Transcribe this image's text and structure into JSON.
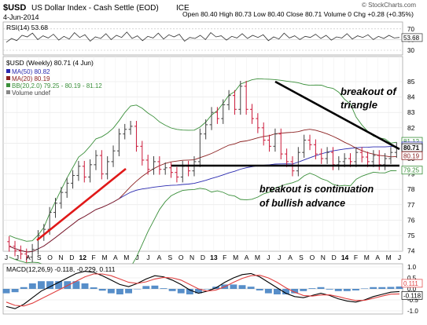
{
  "header": {
    "symbol": "$USD",
    "name": "US Dollar Index - Cash Settle (EOD)",
    "exchange": "ICE",
    "date": "4-Jun-2014",
    "ohlc": "Open 80.40   High 80.73   Low 80.40   Close 80.71   Volume 0   Chg +0.28 (+0.35%)",
    "credit": "© StockCharts.com"
  },
  "rsi": {
    "label": "RSI(14) 53.68",
    "ticks": [
      "70",
      "50",
      "30"
    ],
    "last": "53.68",
    "values": [
      45,
      52,
      48,
      58,
      55,
      62,
      50,
      57,
      53,
      60,
      49,
      56,
      51,
      63,
      54,
      59,
      47,
      55,
      52,
      61,
      50,
      58,
      54,
      64,
      52,
      57,
      48,
      56,
      53,
      62,
      51,
      59,
      55,
      60,
      47,
      54,
      52,
      58,
      50,
      63,
      55,
      57,
      49,
      56,
      53,
      61,
      52,
      58,
      54,
      59,
      48,
      55,
      51,
      62,
      53,
      57,
      50,
      56,
      54,
      60,
      52,
      58,
      49,
      55,
      53,
      61,
      51,
      57,
      54,
      59,
      50,
      56,
      52,
      58,
      53,
      54
    ]
  },
  "main": {
    "legend": {
      "title": "$USD (Weekly) 80.71 (4 Jun)",
      "ma50": "MA(50) 80.82",
      "ma20": "MA(20) 80.19",
      "bb": "BB(20,2.0) 79.25 - 80.19 - 81.12",
      "volume": "Volume undef"
    },
    "y_ticks": [
      "85",
      "84",
      "83",
      "82",
      "81",
      "80",
      "79",
      "78",
      "77",
      "76",
      "75",
      "74"
    ],
    "price_tags": {
      "bb_upper": "81.12",
      "ma50": "80.82",
      "close": "80.71",
      "ma20": "80.19",
      "bb_lower": "79.25"
    },
    "annotations": {
      "triangle_line1": "breakout of",
      "triangle_line2": "triangle",
      "continuation_line1": "breakout is continuation",
      "continuation_line2": "of bullish advance"
    }
  },
  "x_axis": {
    "labels": [
      "J",
      "J",
      "A",
      "S",
      "O",
      "N",
      "D",
      "12",
      "F",
      "M",
      "A",
      "M",
      "J",
      "J",
      "A",
      "S",
      "O",
      "N",
      "D",
      "13",
      "F",
      "M",
      "A",
      "M",
      "J",
      "J",
      "A",
      "S",
      "O",
      "N",
      "D",
      "14",
      "F",
      "M",
      "A",
      "M",
      "J"
    ]
  },
  "macd": {
    "label": "MACD(12,26,9) -0.118, -0.229, 0.111",
    "ticks": [
      "1.0",
      "0.5",
      "0.0",
      "-0.5",
      "-1.0"
    ],
    "last_tags": [
      "0.111",
      "-0.118"
    ],
    "colors": {
      "macd": "#000000",
      "signal": "#e04040",
      "hist": "#3a7abf"
    },
    "macd_values": [
      -0.8,
      -0.9,
      -0.7,
      -0.4,
      -0.1,
      0.1,
      0.3,
      0.5,
      0.7,
      0.8,
      0.75,
      0.6,
      0.4,
      0.2,
      0.1,
      0.25,
      0.45,
      0.6,
      0.55,
      0.4,
      0.2,
      -0.05,
      -0.2,
      -0.1,
      0.05,
      0.3,
      0.5,
      0.65,
      0.7,
      0.55,
      0.3,
      0.05,
      -0.2,
      -0.35,
      -0.4,
      -0.3,
      -0.2,
      -0.3,
      -0.45,
      -0.55,
      -0.6,
      -0.5,
      -0.35,
      -0.25,
      -0.15,
      -0.12
    ],
    "signal_values": [
      -0.6,
      -0.75,
      -0.78,
      -0.65,
      -0.45,
      -0.25,
      -0.05,
      0.15,
      0.35,
      0.55,
      0.68,
      0.68,
      0.6,
      0.45,
      0.3,
      0.25,
      0.32,
      0.45,
      0.52,
      0.5,
      0.4,
      0.2,
      0.0,
      -0.1,
      -0.05,
      0.1,
      0.3,
      0.48,
      0.6,
      0.62,
      0.5,
      0.3,
      0.05,
      -0.15,
      -0.3,
      -0.33,
      -0.28,
      -0.27,
      -0.35,
      -0.45,
      -0.53,
      -0.52,
      -0.43,
      -0.33,
      -0.24,
      -0.23
    ]
  },
  "price_series": {
    "closes": [
      74.3,
      74.0,
      73.8,
      73.6,
      74.1,
      75.0,
      75.4,
      76.5,
      77.1,
      77.8,
      78.4,
      78.9,
      79.5,
      78.8,
      79.6,
      80.2,
      79.0,
      79.8,
      80.5,
      81.6,
      81.9,
      82.1,
      80.8,
      79.9,
      79.3,
      79.8,
      79.3,
      79.4,
      79.1,
      78.8,
      79.5,
      79.2,
      79.8,
      81.6,
      82.2,
      83.0,
      82.6,
      83.5,
      84.1,
      83.2,
      84.7,
      83.2,
      82.6,
      82.0,
      81.2,
      80.8,
      81.6,
      80.3,
      79.8,
      79.2,
      80.4,
      81.2,
      80.9,
      80.3,
      80.0,
      80.4,
      79.6,
      79.8,
      80.0,
      79.8,
      80.4,
      80.1,
      79.8,
      80.2,
      79.6,
      80.0,
      80.4,
      80.71
    ],
    "colors": {
      "up": "#404040",
      "down": "#cc1a3a",
      "ma50": "#2a2ab0",
      "ma20": "#8b2020",
      "bb": "#3a8f3a"
    }
  }
}
